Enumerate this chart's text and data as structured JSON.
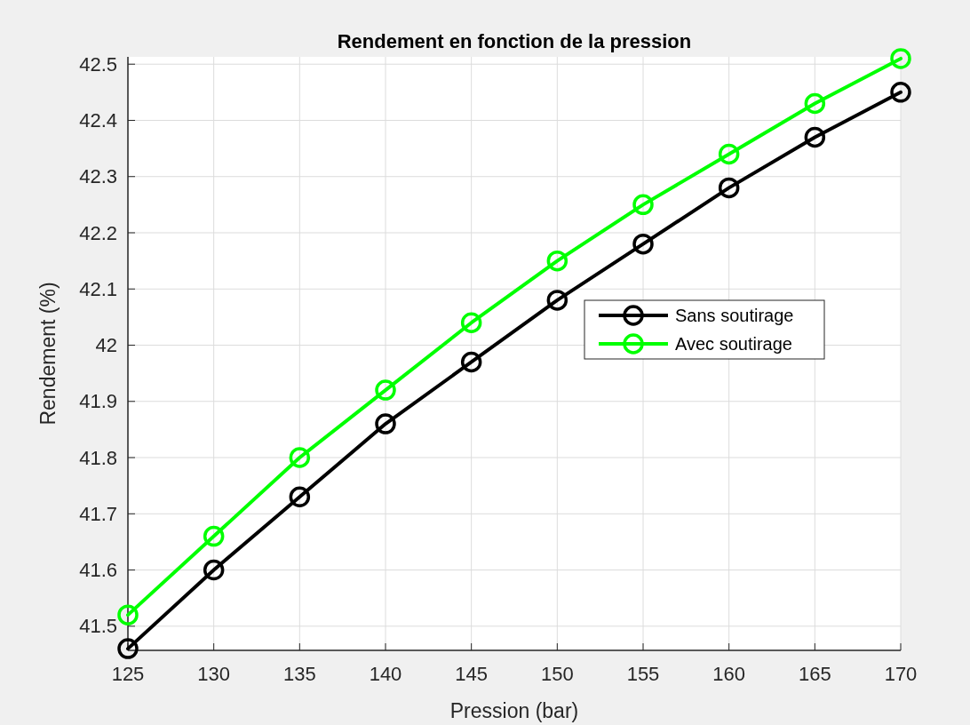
{
  "chart_data": {
    "type": "line",
    "title": "Rendement en fonction de la pression",
    "xlabel": "Pression (bar)",
    "ylabel": "Rendement (%)",
    "x": [
      125,
      130,
      135,
      140,
      145,
      150,
      155,
      160,
      165,
      170
    ],
    "series": [
      {
        "name": "Sans soutirage",
        "color": "#000000",
        "values": [
          41.46,
          41.6,
          41.73,
          41.86,
          41.97,
          42.08,
          42.18,
          42.28,
          42.37,
          42.45
        ]
      },
      {
        "name": "Avec soutirage",
        "color": "#00ff00",
        "values": [
          41.52,
          41.66,
          41.8,
          41.92,
          42.04,
          42.15,
          42.25,
          42.34,
          42.43,
          42.51
        ]
      }
    ],
    "xlim": [
      125,
      170
    ],
    "xticks": [
      125,
      130,
      135,
      140,
      145,
      150,
      155,
      160,
      165,
      170
    ],
    "ylim": [
      41.457,
      42.513
    ],
    "yticks": [
      41.5,
      41.6,
      41.7,
      41.8,
      41.9,
      {
        "value": 42,
        "label": "42"
      },
      42.1,
      42.2,
      42.3,
      42.4,
      42.5
    ],
    "grid": true,
    "legend": "right",
    "marker": "circle",
    "line_style": "solid"
  }
}
